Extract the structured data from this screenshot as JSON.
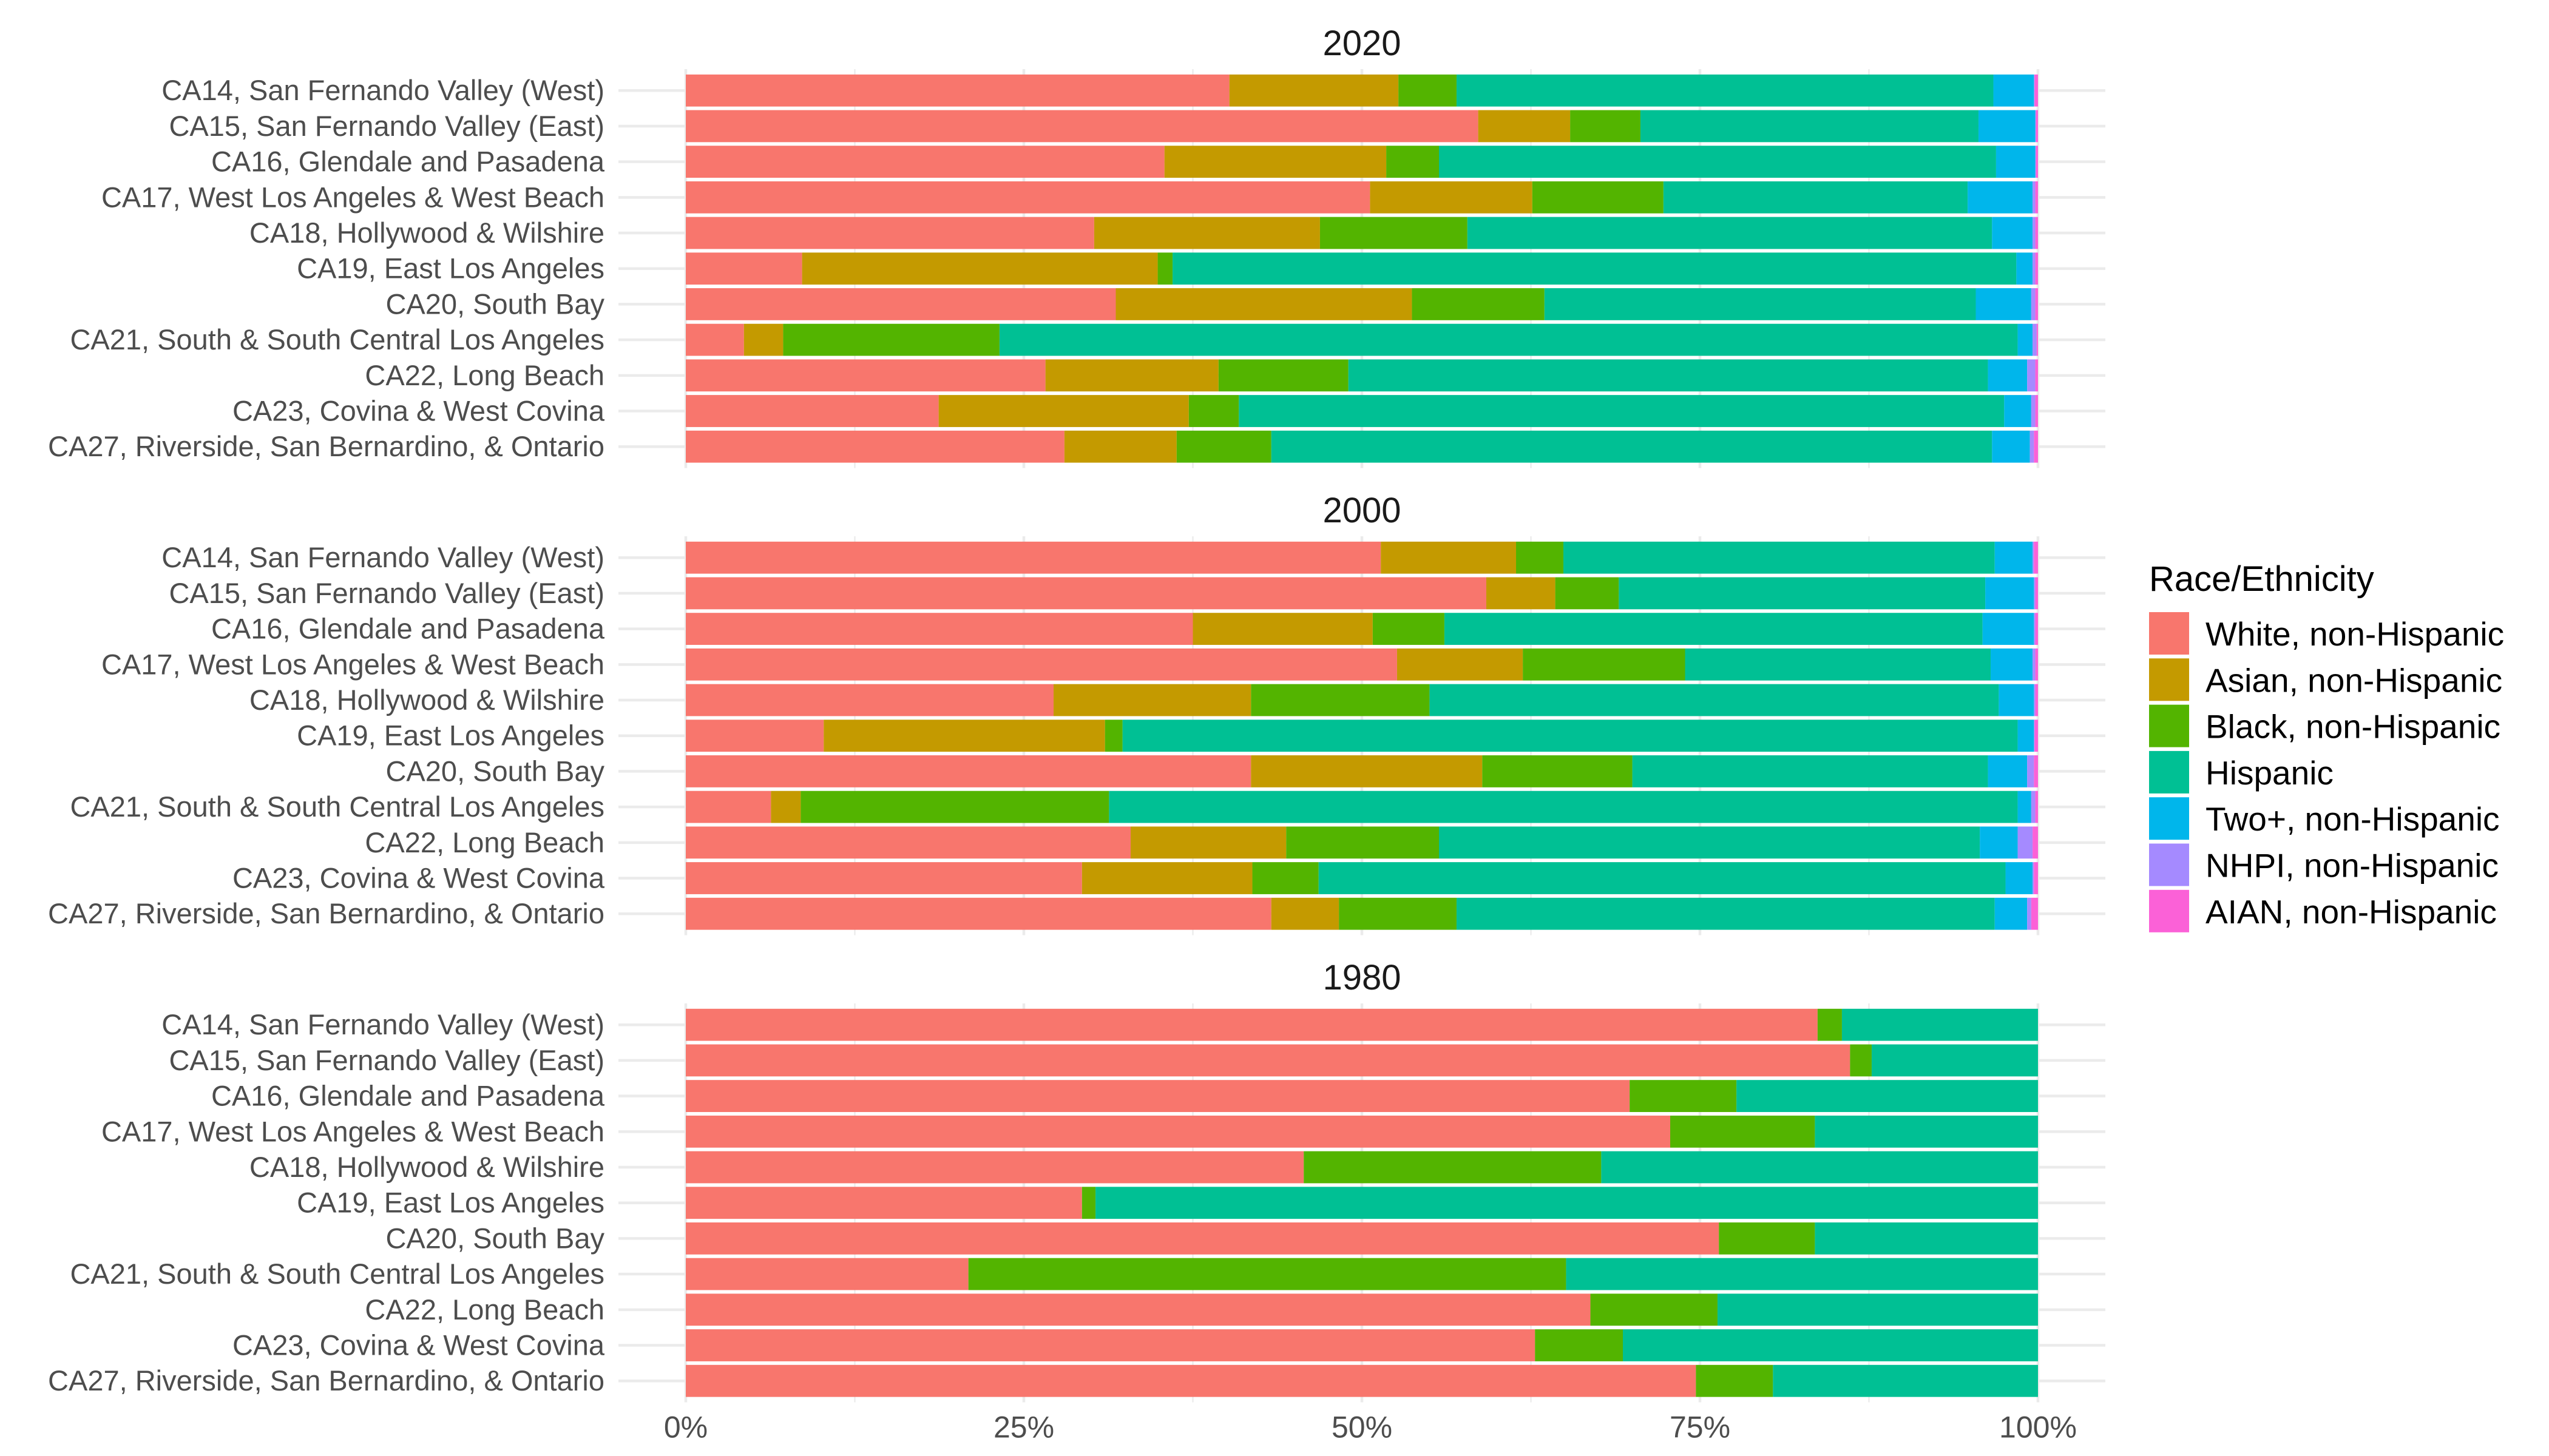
{
  "chart_data": {
    "type": "bar",
    "orientation": "horizontal",
    "stacked": "fill",
    "title": "",
    "xlabel": "",
    "ylabel": "",
    "xlim": [
      0,
      100
    ],
    "x_ticks": [
      "0%",
      "25%",
      "50%",
      "75%",
      "100%"
    ],
    "x_tick_values": [
      0,
      25,
      50,
      75,
      100
    ],
    "grid": true,
    "legend": {
      "title": "Race/Ethnicity",
      "position": "right",
      "entries": [
        {
          "name": "White, non-Hispanic",
          "color": "#F8766D"
        },
        {
          "name": "Asian, non-Hispanic",
          "color": "#C49A00"
        },
        {
          "name": "Black, non-Hispanic",
          "color": "#53B400"
        },
        {
          "name": "Hispanic",
          "color": "#00C094"
        },
        {
          "name": "Two+, non-Hispanic",
          "color": "#00B6EB"
        },
        {
          "name": "NHPI, non-Hispanic",
          "color": "#A58AFF"
        },
        {
          "name": "AIAN, non-Hispanic",
          "color": "#FB61D7"
        }
      ]
    },
    "categories": [
      "CA14, San Fernando Valley (West)",
      "CA15, San Fernando Valley (East)",
      "CA16, Glendale and Pasadena",
      "CA17, West Los Angeles & West Beach",
      "CA18, Hollywood & Wilshire",
      "CA19, East Los Angeles",
      "CA20, South Bay",
      "CA21, South & South Central Los Angeles",
      "CA22, Long Beach",
      "CA23, Covina & West Covina",
      "CA27, Riverside, San Bernardino, & Ontario"
    ],
    "panels": [
      {
        "title": "2020",
        "series": [
          {
            "name": "White, non-Hispanic",
            "values": [
              40.2,
              58.6,
              35.4,
              50.6,
              30.2,
              8.6,
              31.8,
              4.3,
              26.6,
              18.7,
              28.0
            ]
          },
          {
            "name": "Asian, non-Hispanic",
            "values": [
              12.5,
              6.8,
              16.4,
              12.0,
              16.7,
              26.3,
              21.9,
              2.9,
              12.8,
              18.5,
              8.3
            ]
          },
          {
            "name": "Black, non-Hispanic",
            "values": [
              4.3,
              5.2,
              3.9,
              9.7,
              10.9,
              1.1,
              9.8,
              16.0,
              9.6,
              3.7,
              7.0
            ]
          },
          {
            "name": "Hispanic",
            "values": [
              39.7,
              25.0,
              41.2,
              22.5,
              38.8,
              62.4,
              31.9,
              75.3,
              47.3,
              56.6,
              53.3
            ]
          },
          {
            "name": "Two+, non-Hispanic",
            "values": [
              3.0,
              4.2,
              2.9,
              4.8,
              3.0,
              1.2,
              4.1,
              1.1,
              2.9,
              2.0,
              2.8
            ]
          },
          {
            "name": "NHPI, non-Hispanic",
            "values": [
              0.05,
              0.05,
              0.05,
              0.2,
              0.2,
              0.2,
              0.3,
              0.3,
              0.6,
              0.3,
              0.3
            ]
          },
          {
            "name": "AIAN, non-Hispanic",
            "values": [
              0.25,
              0.15,
              0.15,
              0.2,
              0.2,
              0.2,
              0.2,
              0.1,
              0.2,
              0.2,
              0.3
            ]
          }
        ]
      },
      {
        "title": "2000",
        "series": [
          {
            "name": "White, non-Hispanic",
            "values": [
              51.4,
              59.2,
              37.5,
              52.6,
              27.2,
              10.2,
              41.8,
              6.3,
              32.9,
              29.3,
              43.3
            ]
          },
          {
            "name": "Asian, non-Hispanic",
            "values": [
              10.0,
              5.1,
              13.3,
              9.3,
              14.6,
              20.8,
              17.1,
              2.2,
              11.5,
              12.6,
              5.0
            ]
          },
          {
            "name": "Black, non-Hispanic",
            "values": [
              3.5,
              4.7,
              5.3,
              12.0,
              13.2,
              1.3,
              11.1,
              22.8,
              11.3,
              4.9,
              8.7
            ]
          },
          {
            "name": "Hispanic",
            "values": [
              31.9,
              27.1,
              39.8,
              22.6,
              42.1,
              66.2,
              26.3,
              67.2,
              40.0,
              50.8,
              39.8
            ]
          },
          {
            "name": "Two+, non-Hispanic",
            "values": [
              2.8,
              3.6,
              3.8,
              3.1,
              2.6,
              1.2,
              2.9,
              1.0,
              2.8,
              2.0,
              2.4
            ]
          },
          {
            "name": "NHPI, non-Hispanic",
            "values": [
              0.1,
              0.1,
              0.1,
              0.2,
              0.1,
              0.05,
              0.5,
              0.3,
              1.1,
              0.1,
              0.3
            ]
          },
          {
            "name": "AIAN, non-Hispanic",
            "values": [
              0.3,
              0.2,
              0.2,
              0.2,
              0.2,
              0.25,
              0.3,
              0.2,
              0.4,
              0.3,
              0.5
            ]
          }
        ]
      },
      {
        "title": "1980",
        "series": [
          {
            "name": "White, non-Hispanic",
            "values": [
              83.7,
              86.1,
              69.8,
              72.8,
              45.7,
              29.3,
              76.4,
              20.9,
              66.9,
              62.8,
              74.7
            ]
          },
          {
            "name": "Asian, non-Hispanic",
            "values": [
              0,
              0,
              0,
              0,
              0,
              0,
              0,
              0,
              0,
              0,
              0
            ]
          },
          {
            "name": "Black, non-Hispanic",
            "values": [
              1.8,
              1.6,
              7.9,
              10.7,
              22.0,
              1.0,
              7.1,
              44.2,
              9.4,
              6.5,
              5.7
            ]
          },
          {
            "name": "Hispanic",
            "values": [
              14.5,
              12.3,
              22.3,
              16.5,
              32.3,
              69.7,
              16.5,
              34.9,
              23.7,
              30.7,
              19.6
            ]
          },
          {
            "name": "Two+, non-Hispanic",
            "values": [
              0,
              0,
              0,
              0,
              0,
              0,
              0,
              0,
              0,
              0,
              0
            ]
          },
          {
            "name": "NHPI, non-Hispanic",
            "values": [
              0,
              0,
              0,
              0,
              0,
              0,
              0,
              0,
              0,
              0,
              0
            ]
          },
          {
            "name": "AIAN, non-Hispanic",
            "values": [
              0,
              0,
              0,
              0,
              0,
              0,
              0,
              0,
              0,
              0,
              0
            ]
          }
        ]
      }
    ]
  }
}
